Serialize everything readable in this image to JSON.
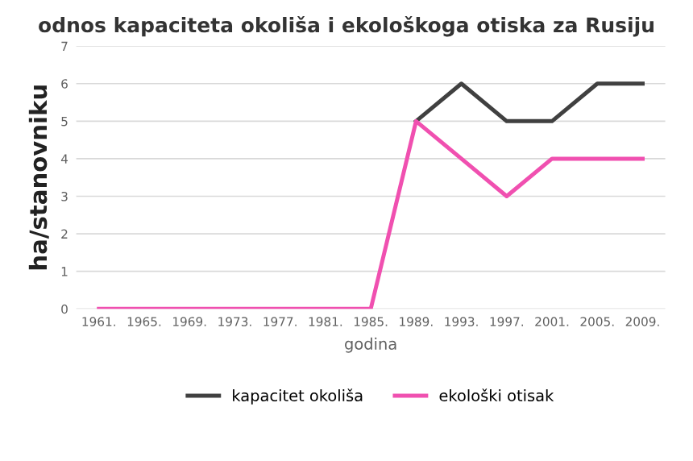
{
  "chart_data": {
    "type": "line",
    "title": "odnos kapaciteta okoliša i ekološkoga otiska za Rusiju",
    "xlabel": "godina",
    "ylabel": "ha/stanovniku",
    "categories": [
      "1961.",
      "1965.",
      "1969.",
      "1973.",
      "1977.",
      "1981.",
      "1985.",
      "1989.",
      "1993.",
      "1997.",
      "2001.",
      "2005.",
      "2009."
    ],
    "series": [
      {
        "name": "kapacitet okoliša",
        "color": "#404040",
        "values": [
          null,
          null,
          null,
          null,
          null,
          null,
          null,
          5,
          6,
          5,
          5,
          6,
          6
        ]
      },
      {
        "name": "ekološki otisak",
        "color": "#f050b0",
        "values": [
          0,
          0,
          0,
          0,
          0,
          0,
          0,
          5,
          4,
          3,
          4,
          4,
          4
        ]
      }
    ],
    "ylim": [
      0,
      7
    ],
    "yticks": [
      0,
      1,
      2,
      3,
      4,
      5,
      6,
      7
    ],
    "grid": "y",
    "legend": "bottom"
  }
}
